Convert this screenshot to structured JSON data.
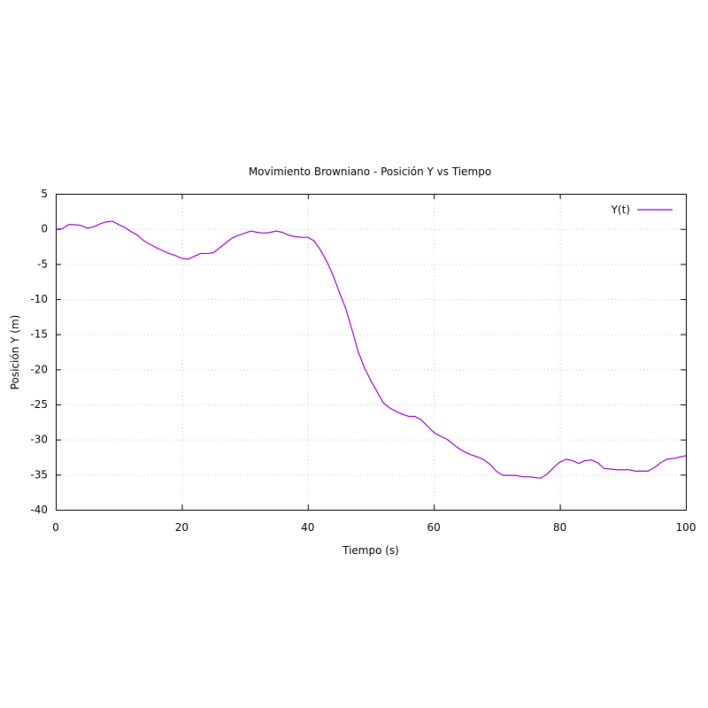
{
  "chart_data": {
    "type": "line",
    "title": "Movimiento Browniano - Posición Y vs Tiempo",
    "xlabel": "Tiempo (s)",
    "ylabel": "Posición Y (m)",
    "xlim": [
      0,
      100
    ],
    "ylim": [
      -40,
      5
    ],
    "xticks": [
      0,
      20,
      40,
      60,
      80,
      100
    ],
    "yticks": [
      5,
      0,
      -5,
      -10,
      -15,
      -20,
      -25,
      -30,
      -35,
      -40
    ],
    "grid": true,
    "legend_position": "top-right",
    "series": [
      {
        "name": "Y(t)",
        "color": "#9400d3",
        "x": [
          0,
          1,
          2,
          3,
          4,
          5,
          6,
          7,
          8,
          9,
          10,
          11,
          12,
          13,
          14,
          15,
          16,
          17,
          18,
          19,
          20,
          21,
          22,
          23,
          24,
          25,
          26,
          27,
          28,
          29,
          30,
          31,
          32,
          33,
          34,
          35,
          36,
          37,
          38,
          39,
          40,
          41,
          42,
          43,
          44,
          45,
          46,
          47,
          48,
          49,
          50,
          51,
          52,
          53,
          54,
          55,
          56,
          57,
          58,
          59,
          60,
          61,
          62,
          63,
          64,
          65,
          66,
          67,
          68,
          69,
          70,
          71,
          72,
          73,
          74,
          75,
          76,
          77,
          78,
          79,
          80,
          81,
          82,
          83,
          84,
          85,
          86,
          87,
          88,
          89,
          90,
          91,
          92,
          93,
          94,
          95,
          96,
          97,
          98,
          99,
          100
        ],
        "values": [
          0.0,
          0.0,
          0.6,
          0.6,
          0.5,
          0.1,
          0.3,
          0.7,
          1.0,
          1.1,
          0.6,
          0.2,
          -0.4,
          -0.9,
          -1.7,
          -2.2,
          -2.7,
          -3.1,
          -3.5,
          -3.8,
          -4.2,
          -4.3,
          -3.9,
          -3.5,
          -3.5,
          -3.4,
          -2.7,
          -2.0,
          -1.3,
          -0.9,
          -0.6,
          -0.3,
          -0.5,
          -0.6,
          -0.5,
          -0.3,
          -0.5,
          -0.9,
          -1.1,
          -1.2,
          -1.2,
          -1.7,
          -3.0,
          -4.6,
          -6.6,
          -9.0,
          -11.3,
          -14.3,
          -17.5,
          -19.8,
          -21.6,
          -23.2,
          -24.8,
          -25.5,
          -26.0,
          -26.4,
          -26.7,
          -26.7,
          -27.2,
          -28.1,
          -29.0,
          -29.5,
          -29.9,
          -30.6,
          -31.3,
          -31.8,
          -32.2,
          -32.5,
          -32.9,
          -33.6,
          -34.6,
          -35.1,
          -35.1,
          -35.1,
          -35.3,
          -35.3,
          -35.4,
          -35.5,
          -34.9,
          -34.0,
          -33.2,
          -32.8,
          -33.0,
          -33.4,
          -33.0,
          -32.9,
          -33.3,
          -34.1,
          -34.2,
          -34.3,
          -34.3,
          -34.3,
          -34.5,
          -34.5,
          -34.5,
          -34.0,
          -33.3,
          -32.8,
          -32.7,
          -32.5,
          -32.3
        ]
      }
    ]
  }
}
